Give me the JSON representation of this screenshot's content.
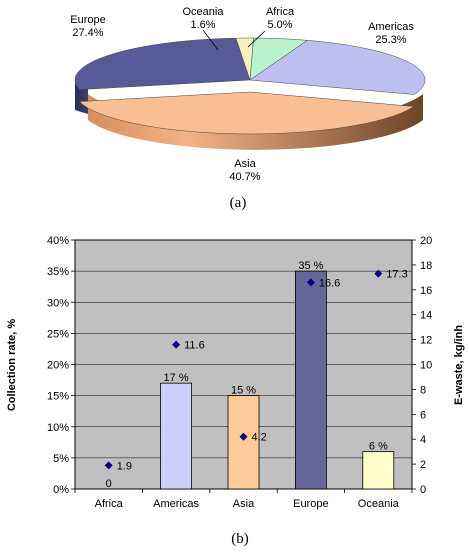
{
  "chart_data": [
    {
      "type": "pie",
      "style": "3d-exploded-perspective",
      "categories": [
        "Africa",
        "Americas",
        "Asia",
        "Europe",
        "Oceania"
      ],
      "values": [
        5.0,
        25.3,
        40.7,
        27.4,
        1.6
      ],
      "value_labels": [
        "5.0%",
        "25.3%",
        "40.7%",
        "27.4%",
        "1.6%"
      ],
      "colors": [
        "#b9f2cc",
        "#bcbff0",
        "#f8be94",
        "#585a98",
        "#f4f1bf"
      ],
      "caption": "(a)"
    },
    {
      "type": "bar",
      "categories": [
        "Africa",
        "Americas",
        "Asia",
        "Europe",
        "Oceania"
      ],
      "grid": true,
      "plot_background": "#c0c0c0",
      "caption": "(b)",
      "series": [
        {
          "kind": "bar",
          "axis": "left",
          "values": [
            0,
            17,
            15,
            35,
            6
          ],
          "value_labels": [
            "0",
            "17 %",
            "15 %",
            "35 %",
            "6 %"
          ],
          "colors": [
            "#b9f2cc",
            "#cccfff",
            "#ffcc99",
            "#666699",
            "#ffffcc"
          ]
        },
        {
          "kind": "scatter",
          "axis": "right",
          "values": [
            1.9,
            11.6,
            4.2,
            16.6,
            17.3
          ],
          "value_labels": [
            "1.9",
            "11.6",
            "4.2",
            "16.6",
            "17.3"
          ],
          "color": "#000080"
        }
      ],
      "ylabel_left": "Collection rate, %",
      "ylabel_right": "E-waste, kg/inh",
      "ylim_left": [
        0,
        40
      ],
      "ylim_right": [
        0,
        20
      ],
      "yticks_left": [
        "0%",
        "5%",
        "10%",
        "15%",
        "20%",
        "25%",
        "30%",
        "35%",
        "40%"
      ],
      "yticks_right": [
        "0",
        "2",
        "4",
        "6",
        "8",
        "10",
        "12",
        "14",
        "16",
        "18",
        "20"
      ]
    }
  ]
}
